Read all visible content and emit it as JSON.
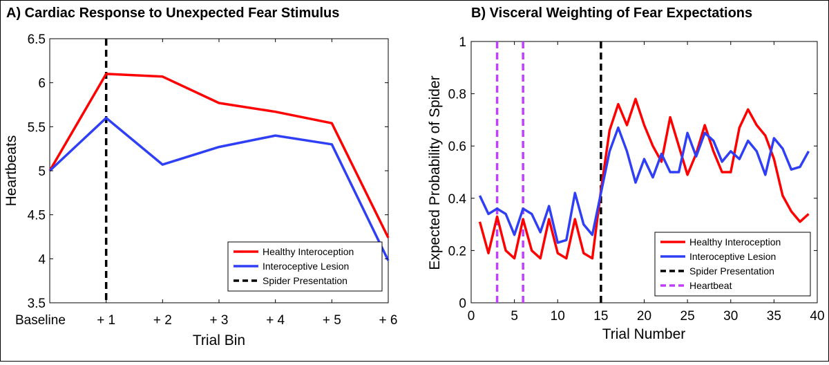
{
  "chart_data": [
    {
      "type": "line",
      "title": "A) Cardiac Response to Unexpected Fear Stimulus",
      "xlabel": "Trial Bin",
      "ylabel": "Heartbeats",
      "categories": [
        "Baseline",
        "+ 1",
        "+ 2",
        "+ 3",
        "+ 4",
        "+ 5",
        "+ 6"
      ],
      "ylim": [
        3.5,
        6.5
      ],
      "yticks": [
        "3.5",
        "4",
        "4.5",
        "5",
        "5.5",
        "6",
        "6.5"
      ],
      "series": [
        {
          "name": "Healthy Interoception",
          "color": "#ff0000",
          "values": [
            5.0,
            6.1,
            6.07,
            5.77,
            5.67,
            5.54,
            4.24
          ]
        },
        {
          "name": "Interoceptive Lesion",
          "color": "#2f3ff5",
          "values": [
            5.0,
            5.6,
            5.07,
            5.27,
            5.4,
            5.3,
            3.98
          ]
        }
      ],
      "vlines": [
        {
          "name": "Spider Presentation",
          "x": "+ 1",
          "color": "#000000"
        }
      ],
      "legend_position": "bottom-right",
      "grid": false
    },
    {
      "type": "line",
      "title": "B) Visceral Weighting of Fear Expectations",
      "xlabel": "Trial Number",
      "ylabel": "Expected Probability of Spider",
      "xlim": [
        0,
        40
      ],
      "ylim": [
        0,
        1
      ],
      "xticks": [
        "0",
        "5",
        "10",
        "15",
        "20",
        "25",
        "30",
        "35",
        "40"
      ],
      "yticks": [
        "0",
        "0.2",
        "0.4",
        "0.6",
        "0.8",
        "1"
      ],
      "x": [
        1,
        2,
        3,
        4,
        5,
        6,
        7,
        8,
        9,
        10,
        11,
        12,
        13,
        14,
        15,
        16,
        17,
        18,
        19,
        20,
        21,
        22,
        23,
        24,
        25,
        26,
        27,
        28,
        29,
        30,
        31,
        32,
        33,
        34,
        35,
        36,
        37,
        38,
        39
      ],
      "series": [
        {
          "name": "Healthy Interoception",
          "color": "#ff0000",
          "values": [
            0.31,
            0.19,
            0.33,
            0.2,
            0.17,
            0.32,
            0.2,
            0.17,
            0.32,
            0.19,
            0.17,
            0.32,
            0.19,
            0.17,
            0.43,
            0.66,
            0.76,
            0.68,
            0.78,
            0.68,
            0.6,
            0.54,
            0.71,
            0.6,
            0.49,
            0.57,
            0.68,
            0.58,
            0.5,
            0.5,
            0.67,
            0.74,
            0.68,
            0.64,
            0.55,
            0.41,
            0.35,
            0.31,
            0.34
          ]
        },
        {
          "name": "Interoceptive Lesion",
          "color": "#2f3ff5",
          "values": [
            0.41,
            0.34,
            0.36,
            0.34,
            0.26,
            0.36,
            0.34,
            0.27,
            0.37,
            0.23,
            0.24,
            0.42,
            0.3,
            0.26,
            0.42,
            0.58,
            0.67,
            0.58,
            0.46,
            0.55,
            0.48,
            0.57,
            0.5,
            0.5,
            0.65,
            0.56,
            0.65,
            0.62,
            0.54,
            0.58,
            0.55,
            0.62,
            0.58,
            0.49,
            0.63,
            0.59,
            0.51,
            0.52,
            0.58
          ]
        }
      ],
      "vlines": [
        {
          "name": "Spider Presentation",
          "x": 15,
          "color": "#000000"
        },
        {
          "name": "Heartbeat",
          "x": 3,
          "color": "#bf40ff"
        },
        {
          "name": "Heartbeat",
          "x": 6,
          "color": "#bf40ff"
        }
      ],
      "legend_position": "bottom-right",
      "grid": false
    }
  ]
}
